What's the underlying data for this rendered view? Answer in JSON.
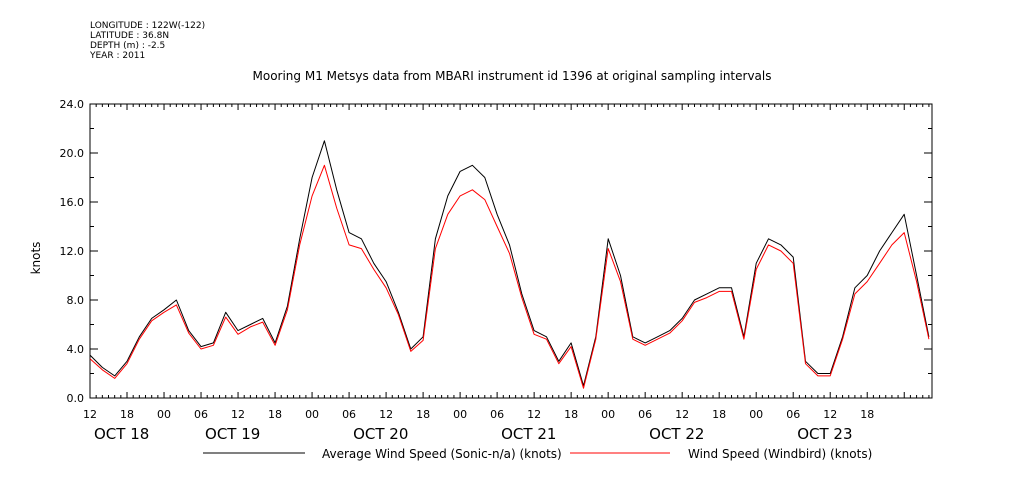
{
  "meta": {
    "longitude": "LONGITUDE : 122W(-122)",
    "latitude": "LATITUDE : 36.8N",
    "depth": "DEPTH (m) : -2.5",
    "year": "YEAR : 2011"
  },
  "chart_data": {
    "type": "line",
    "title": "Mooring M1 Metsys data from MBARI instrument id 1396 at original sampling intervals",
    "ylabel": "knots",
    "xlabel": "",
    "ylim": [
      0,
      24
    ],
    "y_ticks": [
      "0.0",
      "4.0",
      "8.0",
      "12.0",
      "16.0",
      "20.0",
      "24.0"
    ],
    "xlim_hours": [
      0,
      136.5
    ],
    "x_tick_labels": [
      {
        "h": 0,
        "label": "12"
      },
      {
        "h": 6,
        "label": "18"
      },
      {
        "h": 12,
        "label": "00"
      },
      {
        "h": 18,
        "label": "06"
      },
      {
        "h": 24,
        "label": "12"
      },
      {
        "h": 30,
        "label": "18"
      },
      {
        "h": 36,
        "label": "00"
      },
      {
        "h": 42,
        "label": "06"
      },
      {
        "h": 48,
        "label": "12"
      },
      {
        "h": 54,
        "label": "18"
      },
      {
        "h": 60,
        "label": "00"
      },
      {
        "h": 66,
        "label": "06"
      },
      {
        "h": 72,
        "label": "12"
      },
      {
        "h": 78,
        "label": "18"
      },
      {
        "h": 84,
        "label": "00"
      },
      {
        "h": 90,
        "label": "06"
      },
      {
        "h": 96,
        "label": "12"
      },
      {
        "h": 102,
        "label": "18"
      },
      {
        "h": 108,
        "label": "00"
      },
      {
        "h": 114,
        "label": "06"
      },
      {
        "h": 120,
        "label": "12"
      },
      {
        "h": 126,
        "label": "18"
      }
    ],
    "date_labels": [
      {
        "h": 0,
        "label": "OCT 18"
      },
      {
        "h": 18,
        "label": "OCT 19"
      },
      {
        "h": 42,
        "label": "OCT 20"
      },
      {
        "h": 66,
        "label": "OCT 21"
      },
      {
        "h": 90,
        "label": "OCT 22"
      },
      {
        "h": 114,
        "label": "OCT 23"
      }
    ],
    "series": [
      {
        "name": "Average Wind Speed (Sonic-n/a) (knots)",
        "color": "#000000",
        "x": [
          0,
          2,
          4,
          6,
          8,
          10,
          12,
          14,
          16,
          18,
          20,
          22,
          24,
          26,
          28,
          30,
          32,
          34,
          36,
          38,
          40,
          42,
          44,
          46,
          48,
          50,
          52,
          54,
          56,
          58,
          60,
          62,
          64,
          66,
          68,
          70,
          72,
          74,
          76,
          78,
          80,
          82,
          84,
          86,
          88,
          90,
          92,
          94,
          96,
          98,
          100,
          102,
          104,
          106,
          108,
          110,
          112,
          114,
          116,
          118,
          120,
          122,
          124,
          126,
          128,
          130,
          132,
          134,
          136
        ],
        "y": [
          3.5,
          2.5,
          1.8,
          3.0,
          5.0,
          6.5,
          7.2,
          8.0,
          5.5,
          4.2,
          4.5,
          7.0,
          5.5,
          6.0,
          6.5,
          4.5,
          7.5,
          13.0,
          18.0,
          21.0,
          17.0,
          13.5,
          13.0,
          11.0,
          9.5,
          7.0,
          4.0,
          5.0,
          13.0,
          16.5,
          18.5,
          19.0,
          18.0,
          15.0,
          12.5,
          8.5,
          5.5,
          5.0,
          3.0,
          4.5,
          1.0,
          5.0,
          13.0,
          10.0,
          5.0,
          4.5,
          5.0,
          5.5,
          6.5,
          8.0,
          8.5,
          9.0,
          9.0,
          5.0,
          11.0,
          13.0,
          12.5,
          11.5,
          3.0,
          2.0,
          2.0,
          5.0,
          9.0,
          10.0,
          12.0,
          13.5,
          15.0,
          10.0,
          5.0
        ]
      },
      {
        "name": "Wind Speed (Windbird) (knots)",
        "color": "#ff0000",
        "x": [
          0,
          2,
          4,
          6,
          8,
          10,
          12,
          14,
          16,
          18,
          20,
          22,
          24,
          26,
          28,
          30,
          32,
          34,
          36,
          38,
          40,
          42,
          44,
          46,
          48,
          50,
          52,
          54,
          56,
          58,
          60,
          62,
          64,
          66,
          68,
          70,
          72,
          74,
          76,
          78,
          80,
          82,
          84,
          86,
          88,
          90,
          92,
          94,
          96,
          98,
          100,
          102,
          104,
          106,
          108,
          110,
          112,
          114,
          116,
          118,
          120,
          122,
          124,
          126,
          128,
          130,
          132,
          134,
          136
        ],
        "y": [
          3.2,
          2.3,
          1.6,
          2.8,
          4.8,
          6.3,
          7.0,
          7.6,
          5.3,
          4.0,
          4.3,
          6.6,
          5.2,
          5.8,
          6.2,
          4.3,
          7.2,
          12.5,
          16.5,
          19.0,
          15.5,
          12.5,
          12.2,
          10.5,
          9.0,
          6.8,
          3.8,
          4.7,
          12.2,
          15.0,
          16.5,
          17.0,
          16.2,
          14.0,
          11.8,
          8.2,
          5.2,
          4.8,
          2.8,
          4.2,
          0.8,
          4.8,
          12.2,
          9.5,
          4.8,
          4.3,
          4.8,
          5.3,
          6.3,
          7.8,
          8.2,
          8.7,
          8.7,
          4.8,
          10.5,
          12.5,
          12.0,
          11.0,
          2.8,
          1.8,
          1.8,
          4.8,
          8.5,
          9.5,
          11.0,
          12.5,
          13.5,
          9.5,
          4.8
        ]
      }
    ]
  }
}
